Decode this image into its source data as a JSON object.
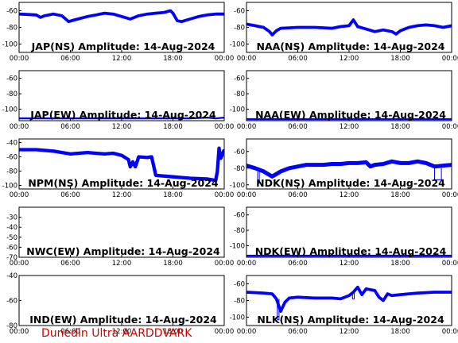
{
  "footer": "Dunedin Ultra AARDDVARK",
  "trace_color": "#0000ff",
  "footer_color": "#d40000",
  "x_tick_labels": [
    "00:00",
    "06:00",
    "12:00",
    "18:00",
    "00:00"
  ],
  "chart_data": [
    {
      "type": "line",
      "title": "JAP(NS) Amplitude: 14-Aug-2024",
      "xlim": [
        0,
        24
      ],
      "ylim": [
        -110,
        -50
      ],
      "yticks": [
        -60,
        -80,
        -100
      ],
      "series": [
        {
          "x": [
            0,
            2,
            2.5,
            3,
            4,
            5,
            5.8,
            6.5,
            8,
            9,
            10,
            11,
            12,
            13,
            14,
            15,
            16,
            17,
            17.7,
            18,
            18.5,
            19,
            20,
            21,
            22,
            23,
            24
          ],
          "y": [
            -64,
            -65,
            -68,
            -66,
            -64,
            -66,
            -73,
            -71,
            -67,
            -65,
            -63,
            -64,
            -67,
            -70,
            -66,
            -64,
            -63,
            -62,
            -60,
            -63,
            -72,
            -73,
            -70,
            -67,
            -65,
            -64,
            -64
          ],
          "band": 3
        }
      ]
    },
    {
      "type": "line",
      "title": "NAA(NS) Amplitude: 14-Aug-2024",
      "xlim": [
        0,
        24
      ],
      "ylim": [
        -110,
        -50
      ],
      "yticks": [
        -60,
        -80,
        -100
      ],
      "series": [
        {
          "x": [
            0,
            1,
            2,
            2.7,
            3,
            3.5,
            4,
            6,
            8,
            10,
            11,
            12,
            12.5,
            13,
            14,
            15,
            16,
            17,
            17.5,
            18,
            19,
            20,
            21,
            22,
            23,
            24
          ],
          "y": [
            -76,
            -78,
            -80,
            -85,
            -89,
            -84,
            -81,
            -80,
            -80,
            -81,
            -79,
            -78,
            -71,
            -79,
            -82,
            -85,
            -83,
            -85,
            -88,
            -84,
            -80,
            -78,
            -77,
            -78,
            -80,
            -78
          ],
          "band": 3
        }
      ]
    },
    {
      "type": "line",
      "title": "JAP(EW) Amplitude: 14-Aug-2024",
      "xlim": [
        0,
        24
      ],
      "ylim": [
        -115,
        -50
      ],
      "yticks": [
        -60,
        -80,
        -100
      ],
      "series": [
        {
          "x": [
            0,
            4,
            8,
            12,
            16,
            20,
            22,
            23,
            24
          ],
          "y": [
            -112,
            -112,
            -112,
            -112,
            -112,
            -112,
            -111,
            -112,
            -111
          ],
          "band": 2
        }
      ]
    },
    {
      "type": "line",
      "title": "NAA(EW) Amplitude: 14-Aug-2024",
      "xlim": [
        0,
        24
      ],
      "ylim": [
        -115,
        -50
      ],
      "yticks": [
        -60,
        -80,
        -100
      ],
      "series": [
        {
          "x": [
            0,
            4,
            8,
            12,
            16,
            20,
            24
          ],
          "y": [
            -113,
            -113,
            -113,
            -113,
            -113,
            -113,
            -113
          ],
          "band": 2
        }
      ]
    },
    {
      "type": "line",
      "title": "NPM(NS) Amplitude: 14-Aug-2024",
      "xlim": [
        0,
        24
      ],
      "ylim": [
        -105,
        -35
      ],
      "yticks": [
        -40,
        -60,
        -80,
        -100
      ],
      "series": [
        {
          "x": [
            0,
            2,
            4,
            6,
            8,
            10,
            11,
            12,
            12.8,
            13,
            13.3,
            13.6,
            14,
            15,
            15.5,
            16,
            18,
            20,
            22,
            23,
            23.2,
            23.4,
            23.6,
            24
          ],
          "y": [
            -50,
            -50,
            -52,
            -56,
            -54,
            -56,
            -55,
            -58,
            -64,
            -74,
            -67,
            -74,
            -60,
            -61,
            -60,
            -86,
            -88,
            -90,
            -91,
            -93,
            -80,
            -48,
            -62,
            -50
          ],
          "band": 4
        }
      ]
    },
    {
      "type": "line",
      "title": "NDK(NS) Amplitude: 14-Aug-2024",
      "xlim": [
        0,
        24
      ],
      "ylim": [
        -105,
        -45
      ],
      "yticks": [
        -60,
        -80,
        -100
      ],
      "series": [
        {
          "x": [
            0,
            1,
            2,
            3,
            4,
            5,
            6,
            7,
            8,
            9,
            10,
            11,
            12,
            13,
            14,
            14.5,
            15,
            16,
            17,
            18,
            19,
            20,
            21,
            22,
            23,
            24
          ],
          "y": [
            -77,
            -80,
            -84,
            -90,
            -84,
            -80,
            -78,
            -76,
            -76,
            -76,
            -75,
            -75,
            -74,
            -74,
            -73,
            -78,
            -76,
            -75,
            -72,
            -74,
            -74,
            -72,
            -74,
            -78,
            -77,
            -76
          ],
          "band": 4
        },
        {
          "x": [
            1.3,
            1.3,
            1.5,
            1.5
          ],
          "y": [
            -84,
            -98,
            -98,
            -84
          ],
          "band": 0
        },
        {
          "x": [
            22,
            22,
            22.8,
            22.8
          ],
          "y": [
            -80,
            -94,
            -94,
            -80
          ],
          "band": 0
        }
      ]
    },
    {
      "type": "line",
      "title": "NWC(EW) Amplitude: 14-Aug-2024",
      "xlim": [
        0,
        24
      ],
      "ylim": [
        -70,
        -20
      ],
      "yticks": [
        -30,
        -40,
        -50,
        -60,
        -70
      ],
      "series": []
    },
    {
      "type": "line",
      "title": "NDK(EW) Amplitude: 14-Aug-2024",
      "xlim": [
        0,
        24
      ],
      "ylim": [
        -115,
        -50
      ],
      "yticks": [
        -60,
        -80,
        -100
      ],
      "series": [
        {
          "x": [
            0,
            4,
            8,
            12,
            16,
            20,
            24
          ],
          "y": [
            -113,
            -113,
            -113,
            -113,
            -113,
            -113,
            -113
          ],
          "band": 2
        }
      ]
    },
    {
      "type": "line",
      "title": "IND(EW) Amplitude: 14-Aug-2024",
      "xlim": [
        0,
        24
      ],
      "ylim": [
        -80,
        -40
      ],
      "yticks": [
        -40,
        -60,
        -80
      ],
      "series": []
    },
    {
      "type": "line",
      "title": "NLK(NS) Amplitude: 14-Aug-2024",
      "xlim": [
        0,
        24
      ],
      "ylim": [
        -110,
        -50
      ],
      "yticks": [
        -60,
        -80,
        -100
      ],
      "series": [
        {
          "x": [
            0,
            2,
            3,
            3.5,
            4,
            4.5,
            5,
            6,
            8,
            10,
            11,
            12,
            12.5,
            13,
            13.5,
            14,
            15,
            15.5,
            16,
            16.5,
            17,
            18,
            19,
            20,
            22,
            24
          ],
          "y": [
            -70,
            -71,
            -72,
            -78,
            -93,
            -82,
            -77,
            -76,
            -77,
            -77,
            -78,
            -74,
            -70,
            -64,
            -73,
            -66,
            -68,
            -76,
            -80,
            -72,
            -74,
            -73,
            -72,
            -71,
            -70,
            -70
          ],
          "band": 3
        },
        {
          "x": [
            3.6,
            3.6,
            3.8,
            3.8
          ],
          "y": [
            -78,
            -103,
            -103,
            -78
          ],
          "band": 0
        },
        {
          "x": [
            12.4,
            12.4,
            12.6,
            12.6
          ],
          "y": [
            -70,
            -78,
            -78,
            -70
          ],
          "band": 0
        }
      ]
    }
  ]
}
